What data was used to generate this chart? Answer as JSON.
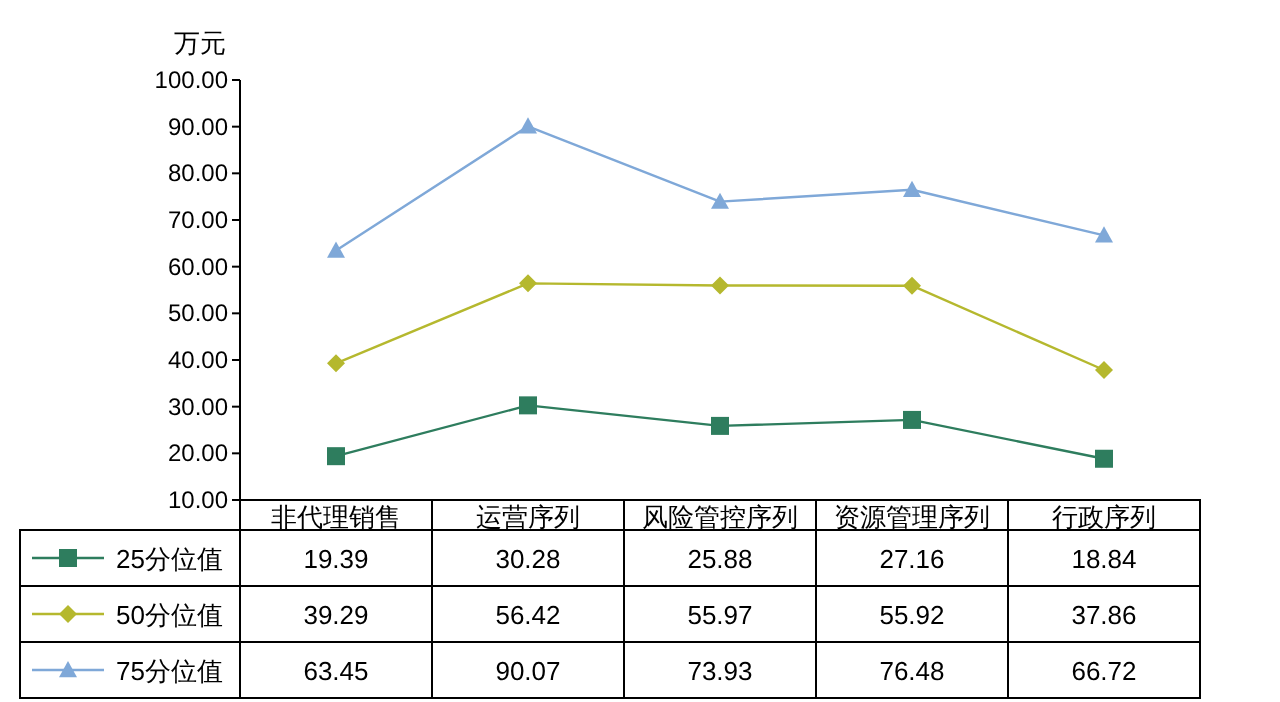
{
  "chart_data": {
    "type": "line",
    "ylabel": "万元",
    "categories": [
      "非代理销售",
      "运营序列",
      "风险管控序列",
      "资源管理序列",
      "行政序列"
    ],
    "ylim": [
      10,
      100
    ],
    "yticks": [
      {
        "value": 10,
        "label": "10.00"
      },
      {
        "value": 20,
        "label": "20.00"
      },
      {
        "value": 30,
        "label": "30.00"
      },
      {
        "value": 40,
        "label": "40.00"
      },
      {
        "value": 50,
        "label": "50.00"
      },
      {
        "value": 60,
        "label": "60.00"
      },
      {
        "value": 70,
        "label": "70.00"
      },
      {
        "value": 80,
        "label": "80.00"
      },
      {
        "value": 90,
        "label": "90.00"
      },
      {
        "value": 100,
        "label": "100.00"
      }
    ],
    "series": [
      {
        "name": "25分位值",
        "color": "#2e7d5e",
        "marker": "square",
        "values": [
          19.39,
          30.28,
          25.88,
          27.16,
          18.84
        ]
      },
      {
        "name": "50分位值",
        "color": "#b5b82e",
        "marker": "diamond",
        "values": [
          39.29,
          56.42,
          55.97,
          55.92,
          37.86
        ]
      },
      {
        "name": "75分位值",
        "color": "#7fa8d8",
        "marker": "triangle",
        "values": [
          63.45,
          90.07,
          73.93,
          76.48,
          66.72
        ]
      }
    ],
    "data_labels": true,
    "legend": "bottom"
  }
}
